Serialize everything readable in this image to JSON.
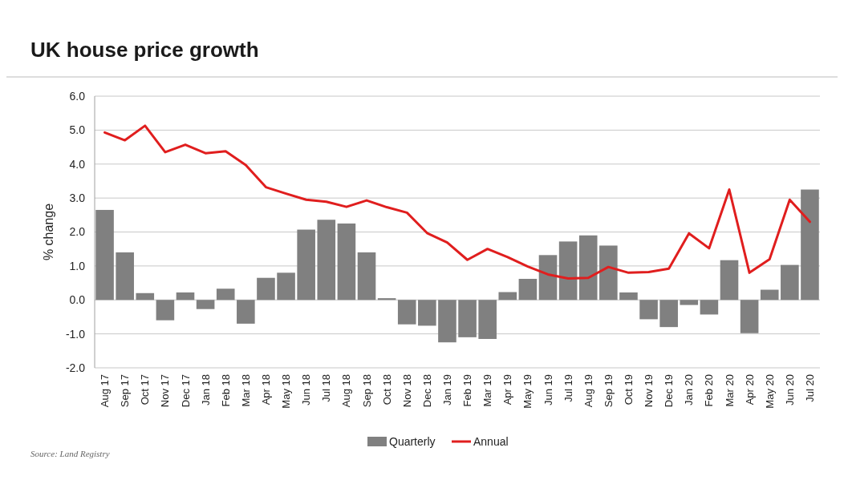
{
  "chart_data": {
    "type": "bar",
    "title": "UK house price growth",
    "ylabel": "% change",
    "categories": [
      "Aug 17",
      "Sep 17",
      "Oct 17",
      "Nov 17",
      "Dec 17",
      "Jan 18",
      "Feb 18",
      "Mar 18",
      "Apr 18",
      "May 18",
      "Jun 18",
      "Jul 18",
      "Aug 18",
      "Sep 18",
      "Oct 18",
      "Nov 18",
      "Dec 18",
      "Jan 19",
      "Feb 19",
      "Mar 19",
      "Apr 19",
      "May 19",
      "Jun 19",
      "Jul 19",
      "Aug 19",
      "Sep 19",
      "Oct 19",
      "Nov 19",
      "Dec 19",
      "Jan 20",
      "Feb 20",
      "Mar 20",
      "Apr 20",
      "May 20",
      "Jun 20",
      "Jul 20"
    ],
    "series": [
      {
        "name": "Quarterly",
        "type": "bar",
        "color": "#808080",
        "values": [
          2.65,
          1.4,
          0.2,
          -0.6,
          0.22,
          -0.27,
          0.33,
          -0.7,
          0.65,
          0.8,
          2.07,
          2.36,
          2.25,
          1.4,
          0.05,
          -0.72,
          -0.76,
          -1.25,
          -1.1,
          -1.15,
          0.23,
          0.62,
          1.32,
          1.72,
          1.9,
          1.6,
          0.22,
          -0.57,
          -0.8,
          -0.15,
          -0.43,
          1.17,
          -0.98,
          0.3,
          1.03,
          3.25
        ]
      },
      {
        "name": "Annual",
        "type": "line",
        "color": "#e01e1e",
        "values": [
          4.93,
          4.7,
          5.13,
          4.35,
          4.57,
          4.32,
          4.38,
          3.97,
          3.32,
          3.13,
          2.95,
          2.89,
          2.74,
          2.93,
          2.73,
          2.57,
          1.97,
          1.69,
          1.18,
          1.5,
          1.26,
          0.98,
          0.75,
          0.63,
          0.65,
          0.97,
          0.8,
          0.82,
          0.92,
          1.96,
          1.52,
          3.25,
          0.8,
          1.2,
          2.95,
          2.3
        ]
      }
    ],
    "ylim": [
      -2,
      6
    ],
    "yticks": [
      {
        "value": -2,
        "label": "-2.0"
      },
      {
        "value": -1,
        "label": "-1.0"
      },
      {
        "value": 0,
        "label": "0.0"
      },
      {
        "value": 1,
        "label": "1.0"
      },
      {
        "value": 2,
        "label": "2.0"
      },
      {
        "value": 3,
        "label": "3.0"
      },
      {
        "value": 4,
        "label": "4.0"
      },
      {
        "value": 5,
        "label": "5.0"
      },
      {
        "value": 6,
        "label": "6.0"
      }
    ],
    "grid": "y",
    "legend": "bottom",
    "marker": "none",
    "line_style": "solid",
    "annotations": [
      "Source: Land Registry"
    ]
  }
}
